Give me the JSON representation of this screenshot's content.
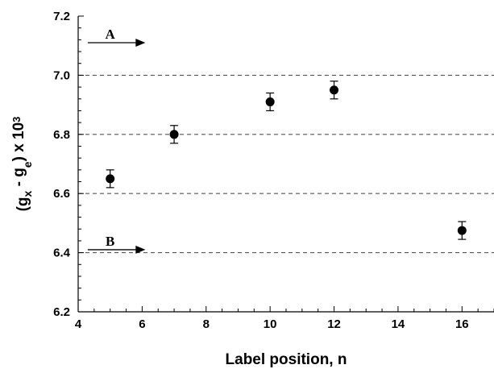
{
  "chart_data": {
    "type": "scatter",
    "xlabel": "Label position, n",
    "ylabel": {
      "parts": [
        "(g",
        "x",
        " - g",
        "e",
        ") x 10",
        "3"
      ]
    },
    "xlim": [
      4,
      17
    ],
    "ylim": [
      6.2,
      7.2
    ],
    "xticks": [
      4,
      6,
      8,
      10,
      12,
      14,
      16
    ],
    "xtick_labels": [
      "4",
      "6",
      "8",
      "10",
      "12",
      "14",
      "16"
    ],
    "yticks": [
      6.2,
      6.4,
      6.6,
      6.8,
      7.0,
      7.2
    ],
    "ytick_labels": [
      "6.2",
      "6.4",
      "6.6",
      "6.8",
      "7.0",
      "7.2"
    ],
    "grid": "horizontal dashed lines at 6.4, 6.6, 6.8, 7.0",
    "gridlines_y": [
      6.4,
      6.6,
      6.8,
      7.0
    ],
    "points": [
      {
        "x": 5,
        "y": 6.65,
        "err": 0.03
      },
      {
        "x": 7,
        "y": 6.8,
        "err": 0.03
      },
      {
        "x": 10,
        "y": 6.91,
        "err": 0.03
      },
      {
        "x": 12,
        "y": 6.95,
        "err": 0.03
      },
      {
        "x": 16,
        "y": 6.475,
        "err": 0.03
      }
    ],
    "annotations": [
      {
        "label": "A",
        "x": 4.3,
        "y": 7.11,
        "x_end": 6.1
      },
      {
        "label": "B",
        "x": 4.3,
        "y": 6.41,
        "x_end": 6.1
      }
    ],
    "colors": {
      "marker": "#000000",
      "grid": "#555555",
      "axis": "#000000"
    }
  }
}
